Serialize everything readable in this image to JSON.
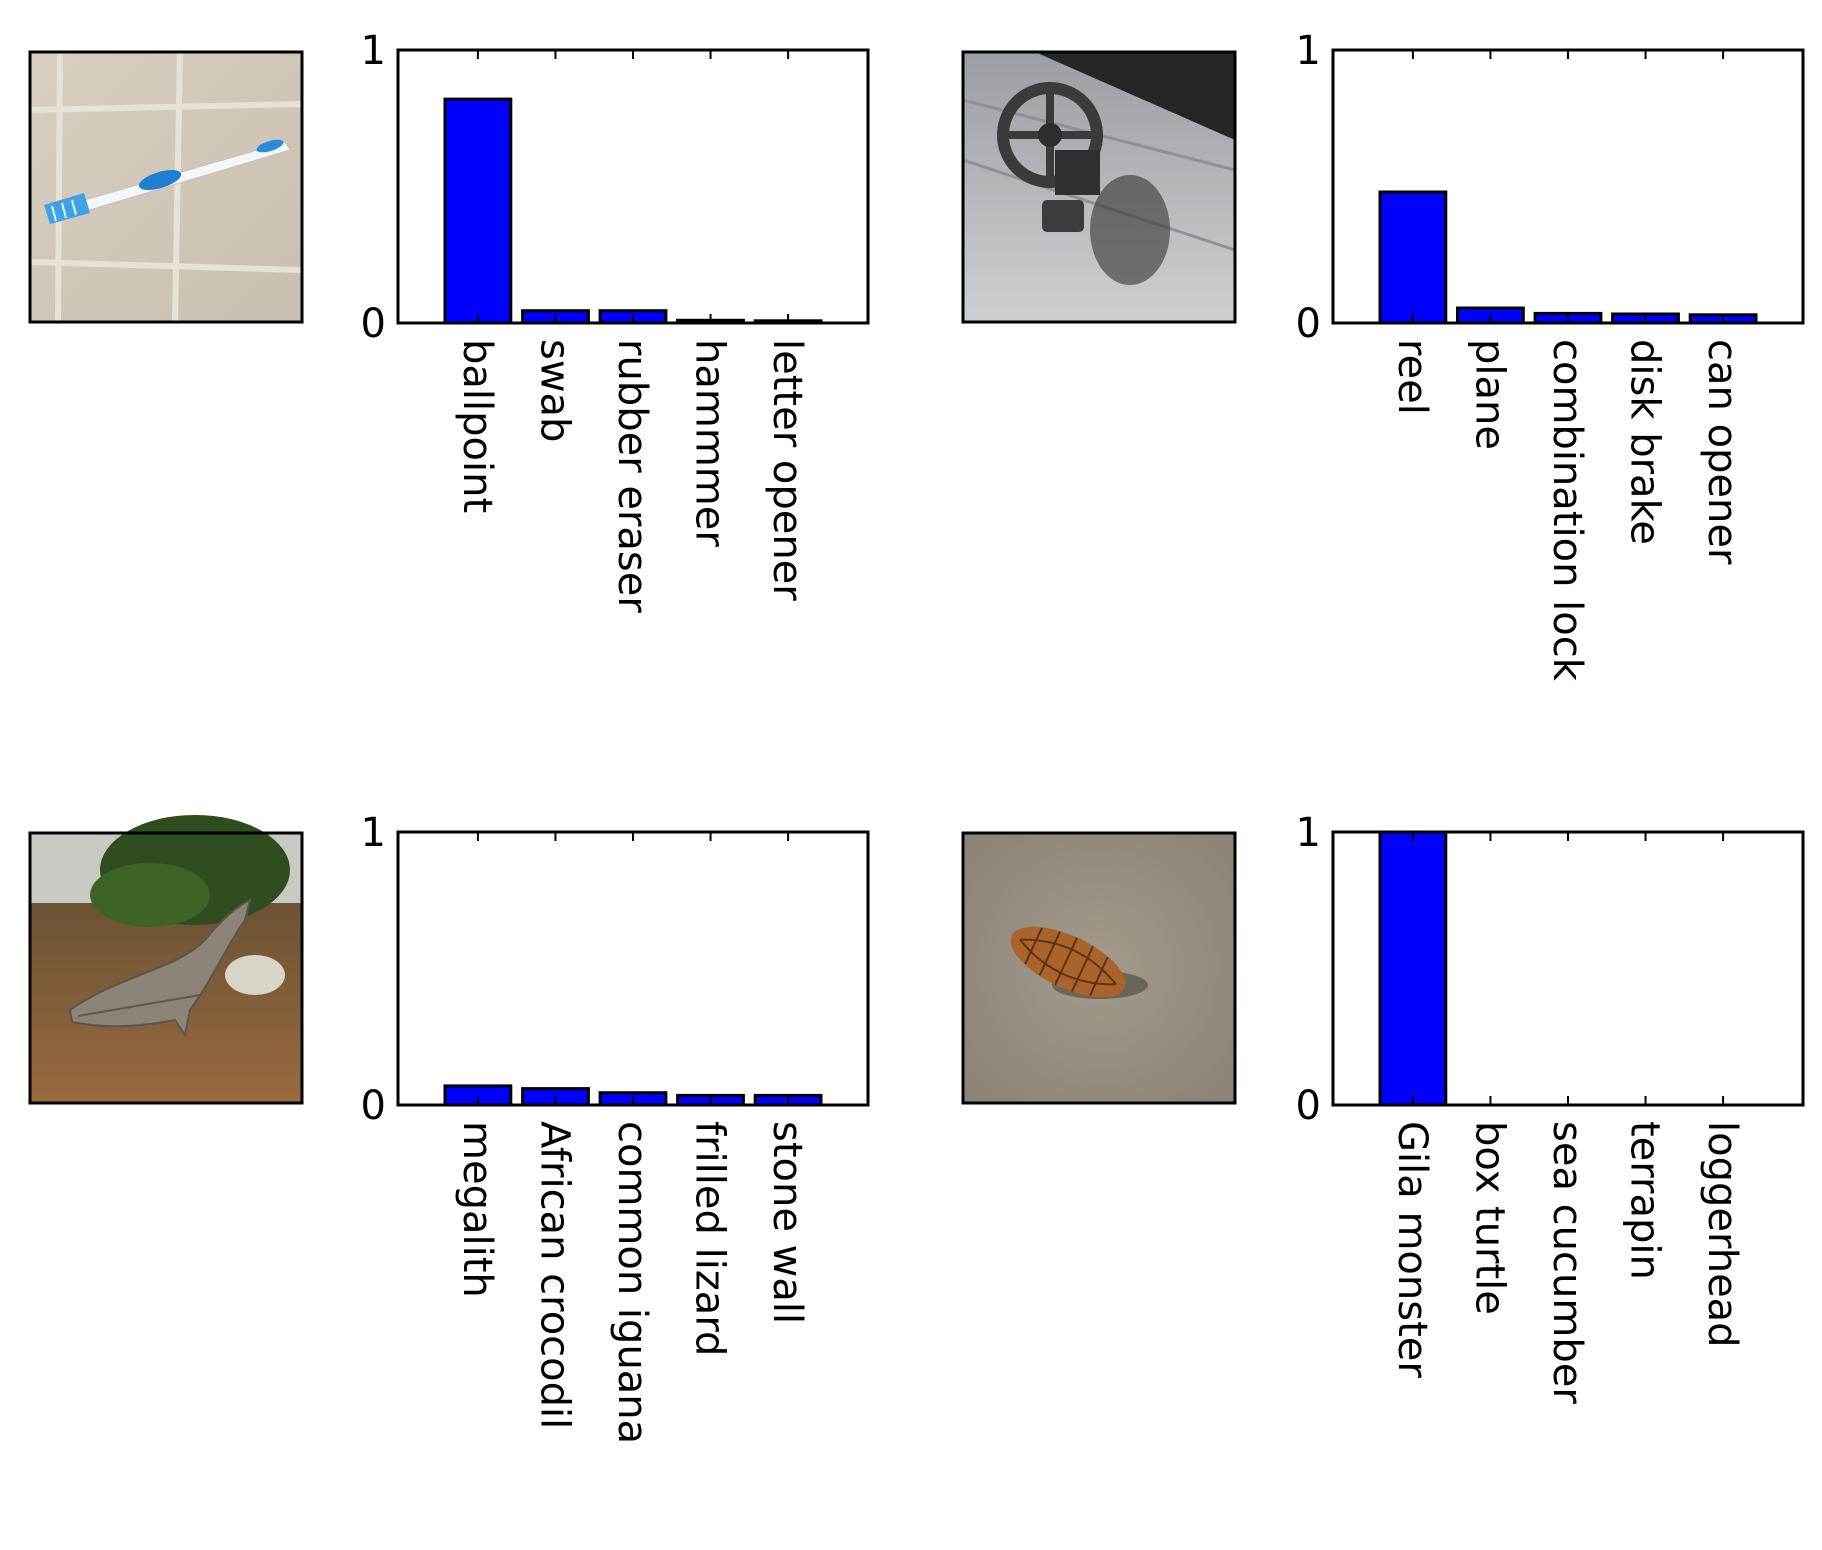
{
  "colors": {
    "bar": "#0000ff",
    "bar_edge": "#000000",
    "axes": "#000000"
  },
  "chart_data": [
    {
      "type": "bar",
      "photo": "toothbrush-photo",
      "categories": [
        "ballpoint",
        "swab",
        "rubber eraser",
        "hammmer",
        "letter opener"
      ],
      "values": [
        0.82,
        0.045,
        0.045,
        0.01,
        0.008
      ],
      "ylim": [
        0,
        1
      ],
      "yticks": [
        "0",
        "1"
      ],
      "title": "",
      "xlabel": "",
      "ylabel": ""
    },
    {
      "type": "bar",
      "photo": "faucet-valve-photo",
      "categories": [
        "reel",
        "plane",
        "combination lock",
        "disk brake",
        "can opener"
      ],
      "values": [
        0.48,
        0.055,
        0.035,
        0.033,
        0.03
      ],
      "ylim": [
        0,
        1
      ],
      "yticks": [
        "0",
        "1"
      ],
      "title": "",
      "xlabel": "",
      "ylabel": ""
    },
    {
      "type": "bar",
      "photo": "driftwood-photo",
      "categories": [
        "megalith",
        "African crocodil",
        "common iguana",
        "frilled lizard",
        "stone wall"
      ],
      "values": [
        0.07,
        0.06,
        0.045,
        0.035,
        0.035
      ],
      "ylim": [
        0,
        1
      ],
      "yticks": [
        "0",
        "1"
      ],
      "title": "",
      "xlabel": "",
      "ylabel": ""
    },
    {
      "type": "bar",
      "photo": "pinecone-photo",
      "categories": [
        "Gila monster",
        "box turtle",
        "sea cucumber",
        "terrapin",
        "loggerhead"
      ],
      "values": [
        1.0,
        0.0,
        0.0,
        0.0,
        0.0
      ],
      "ylim": [
        0,
        1
      ],
      "yticks": [
        "0",
        "1"
      ],
      "title": "",
      "xlabel": "",
      "ylabel": ""
    }
  ]
}
